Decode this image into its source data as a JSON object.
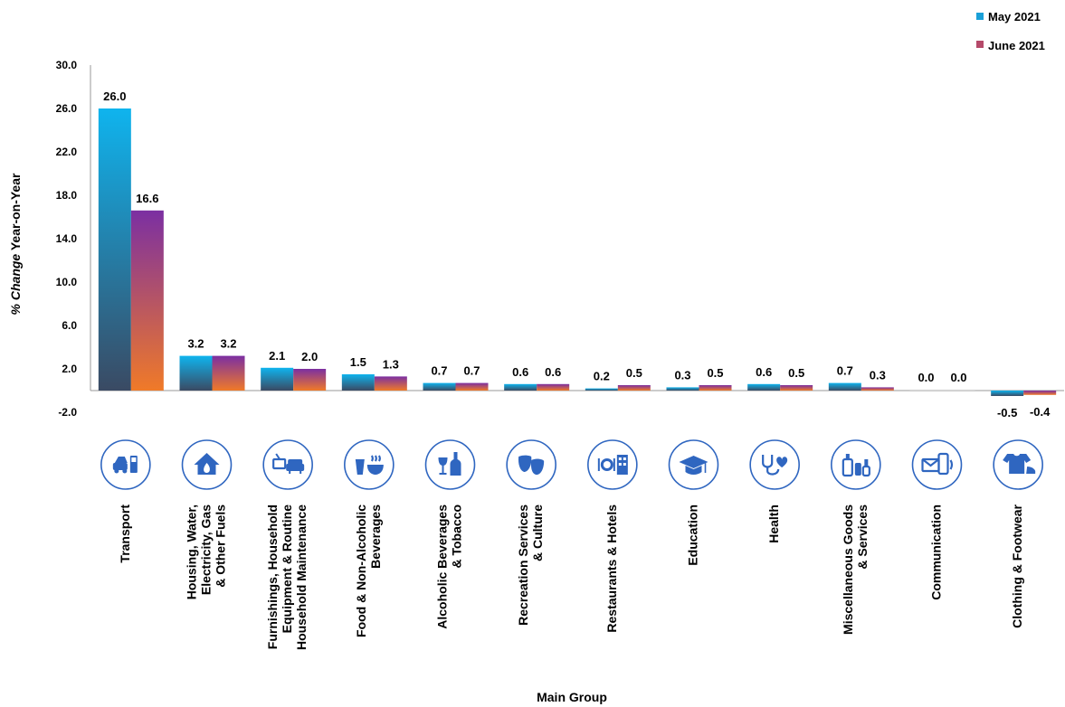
{
  "chart_data": {
    "type": "bar",
    "xlabel": "Main Group",
    "ylabel_italic": "% Change",
    "ylabel_rest": " Year-on-Year",
    "ylim": [
      -2.0,
      30.0
    ],
    "yticks": [
      "-2.0",
      "2.0",
      "6.0",
      "10.0",
      "14.0",
      "18.0",
      "22.0",
      "26.0",
      "30.0"
    ],
    "legend_position": "top-right",
    "categories": [
      {
        "lines": [
          "Transport"
        ],
        "icon": "car-fuel-icon"
      },
      {
        "lines": [
          "Housing, Water,",
          "Electricity, Gas",
          "& Other Fuels"
        ],
        "icon": "house-flame-icon"
      },
      {
        "lines": [
          "Furnishings, Household",
          "Equipment & Routine",
          "Household Maintenance"
        ],
        "icon": "tv-sofa-icon"
      },
      {
        "lines": [
          "Food & Non-Alcoholic",
          "Beverages"
        ],
        "icon": "food-drink-icon"
      },
      {
        "lines": [
          "Alcoholic Beverages",
          "& Tobacco"
        ],
        "icon": "wine-bottle-icon"
      },
      {
        "lines": [
          "Recreation Services",
          "& Culture"
        ],
        "icon": "theatre-masks-icon"
      },
      {
        "lines": [
          "Restaurants & Hotels"
        ],
        "icon": "dining-hotel-icon"
      },
      {
        "lines": [
          "Education"
        ],
        "icon": "graduation-cap-icon"
      },
      {
        "lines": [
          "Health"
        ],
        "icon": "stethoscope-icon"
      },
      {
        "lines": [
          "Miscellaneous Goods",
          "& Services"
        ],
        "icon": "toiletries-icon"
      },
      {
        "lines": [
          "Communication"
        ],
        "icon": "phone-mail-icon"
      },
      {
        "lines": [
          "Clothing & Footwear"
        ],
        "icon": "shirt-shoe-icon"
      }
    ],
    "series": [
      {
        "name": "May 2021",
        "values": [
          26.0,
          3.2,
          2.1,
          1.5,
          0.7,
          0.6,
          0.2,
          0.3,
          0.6,
          0.7,
          0.0,
          -0.5
        ],
        "labels": [
          "26.0",
          "3.2",
          "2.1",
          "1.5",
          "0.7",
          "0.6",
          "0.2",
          "0.3",
          "0.6",
          "0.7",
          "0.0",
          "-0.5"
        ],
        "color_top": "#0fb4ee",
        "color_bottom": "#3a4a63",
        "legend_color": "#1aa0d8"
      },
      {
        "name": "June 2021",
        "values": [
          16.6,
          3.2,
          2.0,
          1.3,
          0.7,
          0.6,
          0.5,
          0.5,
          0.5,
          0.3,
          0.0,
          -0.4
        ],
        "labels": [
          "16.6",
          "3.2",
          "2.0",
          "1.3",
          "0.7",
          "0.6",
          "0.5",
          "0.5",
          "0.5",
          "0.3",
          "0.0",
          "-0.4"
        ],
        "color_top": "#7b2fa2",
        "color_bottom": "#f07a28",
        "legend_color": "#b54a6a"
      }
    ],
    "icon_color": "#2f66c0"
  }
}
